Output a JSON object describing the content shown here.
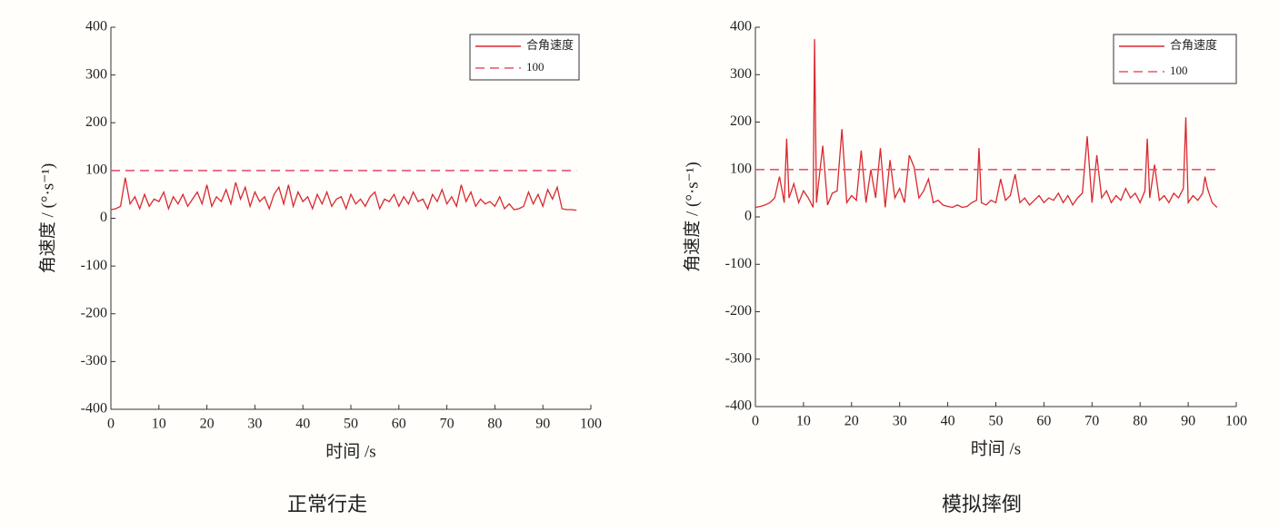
{
  "chart_data": [
    {
      "type": "line",
      "caption": "正常行走",
      "x_label": "时间 /s",
      "y_label": "角速度 / (°·s⁻¹)",
      "xlim": [
        0,
        100
      ],
      "ylim": [
        -400,
        400
      ],
      "xticks": [
        0,
        10,
        20,
        30,
        40,
        50,
        60,
        70,
        80,
        90,
        100
      ],
      "yticks": [
        -400,
        -300,
        -200,
        -100,
        0,
        100,
        200,
        300,
        400
      ],
      "grid": false,
      "legend": "upper right",
      "series": [
        {
          "name": "合角速度",
          "color": "#d9282f",
          "style": "solid",
          "x": [
            0,
            1,
            2,
            3,
            4,
            5,
            6,
            7,
            8,
            9,
            10,
            11,
            12,
            13,
            14,
            15,
            16,
            17,
            18,
            19,
            20,
            21,
            22,
            23,
            24,
            25,
            26,
            27,
            28,
            29,
            30,
            31,
            32,
            33,
            34,
            35,
            36,
            37,
            38,
            39,
            40,
            41,
            42,
            43,
            44,
            45,
            46,
            47,
            48,
            49,
            50,
            51,
            52,
            53,
            54,
            55,
            56,
            57,
            58,
            59,
            60,
            61,
            62,
            63,
            64,
            65,
            66,
            67,
            68,
            69,
            70,
            71,
            72,
            73,
            74,
            75,
            76,
            77,
            78,
            79,
            80,
            81,
            82,
            83,
            84,
            85,
            86,
            87,
            88,
            89,
            90,
            91,
            92,
            93,
            94,
            95,
            96,
            97
          ],
          "values": [
            18,
            20,
            25,
            85,
            30,
            45,
            20,
            50,
            25,
            40,
            35,
            55,
            20,
            45,
            30,
            50,
            25,
            40,
            55,
            30,
            70,
            25,
            45,
            35,
            60,
            30,
            75,
            40,
            65,
            25,
            55,
            35,
            45,
            20,
            50,
            65,
            30,
            70,
            25,
            55,
            35,
            45,
            20,
            50,
            30,
            55,
            25,
            40,
            45,
            20,
            50,
            30,
            40,
            25,
            45,
            55,
            20,
            40,
            35,
            50,
            25,
            45,
            30,
            55,
            35,
            40,
            20,
            50,
            35,
            60,
            30,
            45,
            25,
            70,
            35,
            55,
            25,
            40,
            30,
            35,
            25,
            45,
            20,
            30,
            18,
            20,
            25,
            55,
            30,
            50,
            25,
            60,
            40,
            65,
            20,
            18,
            18,
            17
          ]
        },
        {
          "name": "100",
          "color": "#e8546a",
          "style": "dashed",
          "x": [
            0,
            97
          ],
          "values": [
            100,
            100
          ]
        }
      ]
    },
    {
      "type": "line",
      "caption": "模拟摔倒",
      "x_label": "时间 /s",
      "y_label": "角速度 / (°·s⁻¹)",
      "xlim": [
        0,
        100
      ],
      "ylim": [
        -400,
        400
      ],
      "xticks": [
        0,
        10,
        20,
        30,
        40,
        50,
        60,
        70,
        80,
        90,
        100
      ],
      "yticks": [
        -400,
        -300,
        -200,
        -100,
        0,
        100,
        200,
        300,
        400
      ],
      "grid": false,
      "legend": "upper right",
      "series": [
        {
          "name": "合角速度",
          "color": "#d9282f",
          "style": "solid",
          "x": [
            0,
            1,
            2,
            3,
            4,
            5,
            6,
            6.5,
            7,
            8,
            9,
            10,
            11,
            12,
            12.3,
            12.7,
            13,
            14,
            15,
            16,
            17,
            18,
            19,
            20,
            21,
            22,
            23,
            24,
            25,
            26,
            27,
            28,
            29,
            30,
            31,
            32,
            33,
            34,
            35,
            36,
            37,
            38,
            39,
            40,
            41,
            42,
            43,
            44,
            45,
            46,
            46.5,
            47,
            48,
            49,
            50,
            51,
            52,
            53,
            54,
            55,
            56,
            57,
            58,
            59,
            60,
            61,
            62,
            63,
            64,
            65,
            66,
            67,
            68,
            69,
            70,
            71,
            72,
            73,
            74,
            75,
            76,
            77,
            78,
            79,
            80,
            81,
            81.5,
            82,
            83,
            84,
            85,
            86,
            87,
            88,
            89,
            89.5,
            90,
            91,
            92,
            93,
            93.5,
            94,
            95,
            96
          ],
          "values": [
            20,
            22,
            25,
            30,
            40,
            85,
            30,
            165,
            40,
            70,
            30,
            55,
            40,
            20,
            375,
            30,
            60,
            150,
            25,
            50,
            55,
            185,
            30,
            45,
            35,
            140,
            30,
            100,
            40,
            145,
            20,
            120,
            40,
            60,
            30,
            130,
            105,
            40,
            55,
            80,
            30,
            35,
            25,
            22,
            20,
            25,
            20,
            22,
            30,
            35,
            145,
            30,
            25,
            35,
            30,
            80,
            35,
            45,
            90,
            30,
            40,
            25,
            35,
            45,
            30,
            40,
            35,
            50,
            30,
            45,
            25,
            40,
            50,
            170,
            30,
            130,
            40,
            55,
            30,
            45,
            35,
            60,
            40,
            50,
            30,
            55,
            165,
            40,
            110,
            35,
            45,
            30,
            50,
            40,
            60,
            210,
            30,
            45,
            35,
            50,
            85,
            60,
            30,
            20
          ]
        },
        {
          "name": "100",
          "color": "#e8546a",
          "style": "dashed",
          "x": [
            0,
            96
          ],
          "values": [
            100,
            100
          ]
        }
      ]
    }
  ]
}
